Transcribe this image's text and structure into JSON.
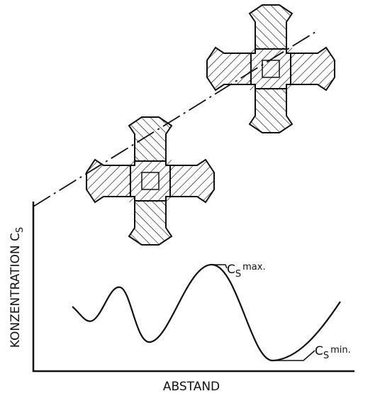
{
  "y_label": {
    "text": "KONZENTRATION C",
    "subscript": "S"
  },
  "x_label": "ABSTAND",
  "max_label": {
    "text": "C",
    "subscript": "S",
    "suffix": "max."
  },
  "min_label": {
    "text": "C",
    "subscript": "S",
    "suffix": "min."
  }
}
